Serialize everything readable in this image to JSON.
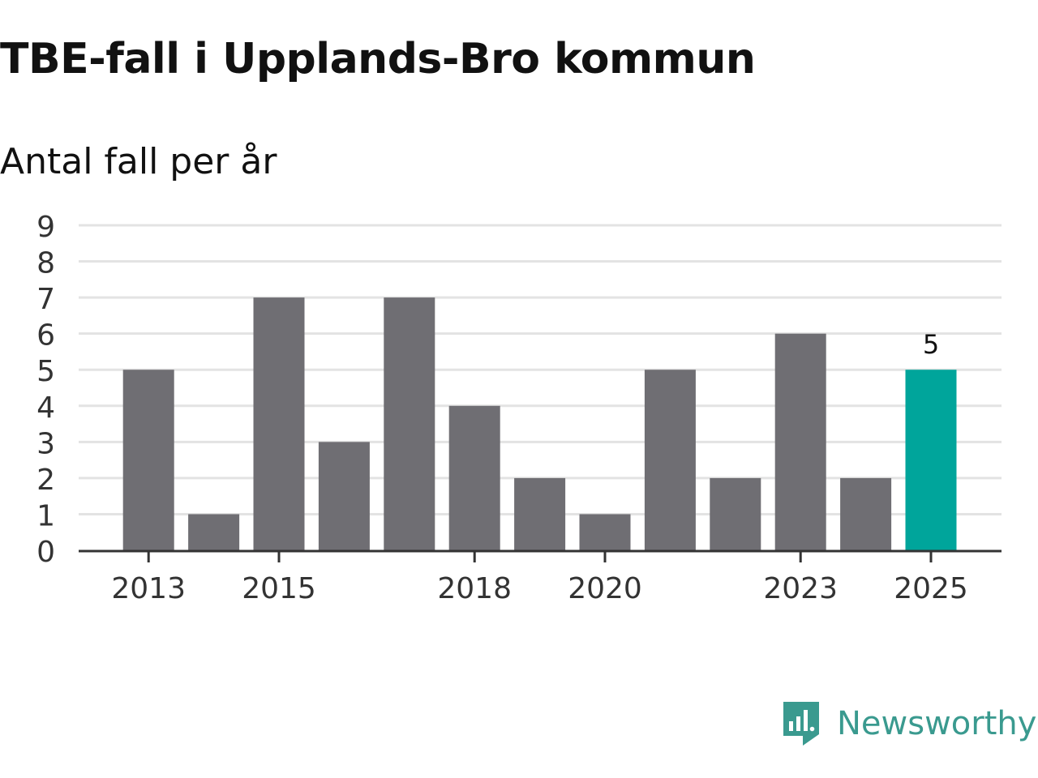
{
  "title": "TBE-fall i Upplands-Bro kommun",
  "subtitle": "Antal fall per år",
  "brand": {
    "name": "Newsworthy",
    "icon": "newsworthy-logo-icon",
    "color": "#3a9a8f"
  },
  "chart_data": {
    "type": "bar",
    "title": "TBE-fall i Upplands-Bro kommun",
    "subtitle": "Antal fall per år",
    "xlabel": "",
    "ylabel": "",
    "categories": [
      "2013",
      "2014",
      "2015",
      "2016",
      "2017",
      "2018",
      "2019",
      "2020",
      "2021",
      "2022",
      "2023",
      "2024",
      "2025"
    ],
    "values": [
      5,
      1,
      7,
      3,
      7,
      4,
      2,
      1,
      5,
      2,
      6,
      2,
      5
    ],
    "x_tick_labels": [
      "2013",
      "2015",
      "2018",
      "2020",
      "2023",
      "2025"
    ],
    "y_ticks": [
      0,
      1,
      2,
      3,
      4,
      5,
      6,
      7,
      8,
      9
    ],
    "ylim": [
      0,
      9
    ],
    "grid": true,
    "colors": {
      "default": "#6f6e73",
      "highlight": "#00a59b",
      "grid": "#e3e3e3",
      "axis": "#333333",
      "tick_text": "#333333"
    },
    "highlight_category": "2025",
    "data_labels": [
      {
        "category": "2025",
        "text": "5"
      }
    ]
  }
}
